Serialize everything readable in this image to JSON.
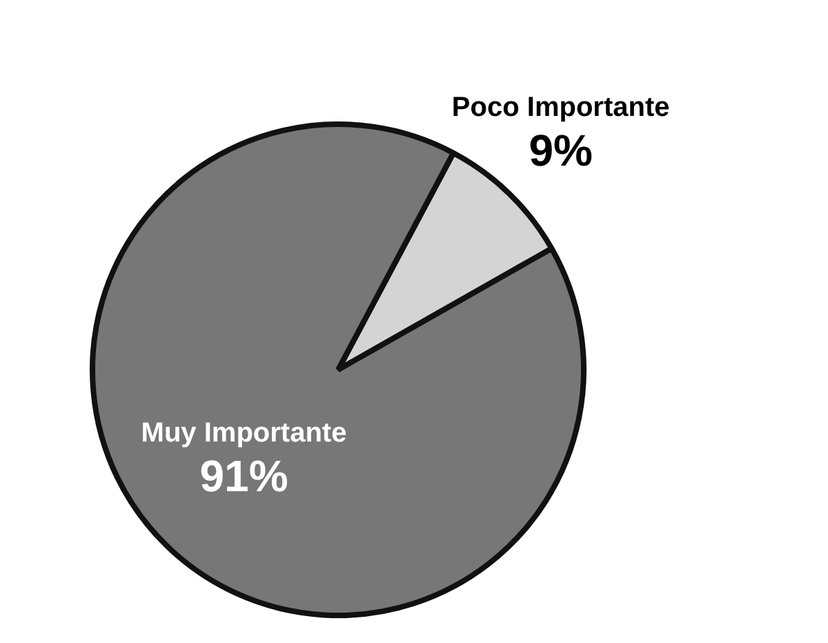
{
  "chart_data": {
    "type": "pie",
    "categories": [
      "Poco Importante",
      "Muy Importante"
    ],
    "values": [
      9,
      91
    ],
    "colors": [
      "#d4d4d4",
      "#777777"
    ],
    "value_labels": [
      "9%",
      "91%"
    ],
    "legend": false
  }
}
